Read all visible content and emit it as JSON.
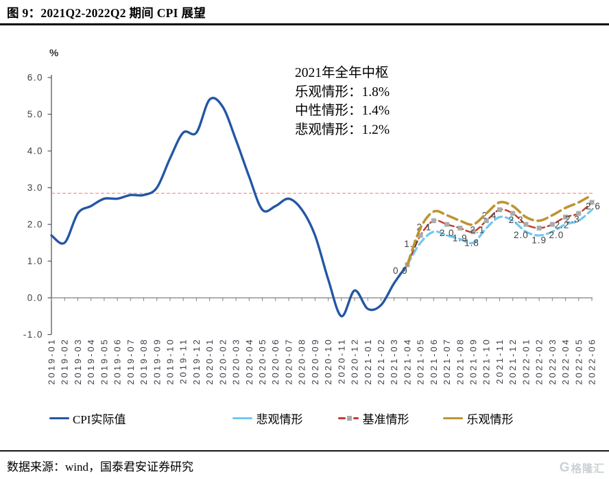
{
  "page": {
    "title": "图 9：2021Q2-2022Q2 期间 CPI 展望",
    "source": "数据来源：wind，国泰君安证券研究",
    "watermark": "格隆汇"
  },
  "annotation": {
    "title": "2021年全年中枢",
    "lines": [
      "乐观情形：1.8%",
      "中性情形：1.4%",
      "悲观情形：1.2%"
    ]
  },
  "chart_data": {
    "type": "line",
    "title": "2021Q2-2022Q2 期间 CPI 展望",
    "y_unit": "%",
    "ylim": [
      -1.0,
      6.0
    ],
    "y_ticks": [
      "6.0",
      "5.0",
      "4.0",
      "3.0",
      "2.0",
      "1.0",
      "0.0",
      "-1.0"
    ],
    "grid": false,
    "legend_position": "bottom",
    "reference_line": {
      "value": 2.85,
      "color": "#FF8585",
      "style": "dashed"
    },
    "x": [
      "2019-01",
      "2019-02",
      "2019-03",
      "2019-04",
      "2019-05",
      "2019-06",
      "2019-07",
      "2019-08",
      "2019-09",
      "2019-10",
      "2019-11",
      "2019-12",
      "2020-01",
      "2020-02",
      "2020-03",
      "2020-04",
      "2020-05",
      "2020-06",
      "2020-07",
      "2020-08",
      "2020-09",
      "2020-10",
      "2020-11",
      "2020-12",
      "2021-01",
      "2021-02",
      "2021-03",
      "2021-04",
      "2021-05",
      "2021-06",
      "2021-07",
      "2021-08",
      "2021-09",
      "2021-10",
      "2021-11",
      "2021-12",
      "2022-01",
      "2022-02",
      "2022-03",
      "2022-04",
      "2022-05",
      "2022-06"
    ],
    "series": [
      {
        "name": "CPI实际值",
        "color": "#2456A4",
        "style": "solid",
        "start_index": 0,
        "values": [
          1.7,
          1.5,
          2.3,
          2.5,
          2.7,
          2.7,
          2.8,
          2.8,
          3.0,
          3.8,
          4.5,
          4.5,
          5.4,
          5.2,
          4.3,
          3.3,
          2.4,
          2.5,
          2.7,
          2.4,
          1.7,
          0.5,
          -0.5,
          0.2,
          -0.3,
          -0.2,
          0.4,
          0.9
        ]
      },
      {
        "name": "悲观情形",
        "color": "#6FC7F2",
        "style": "dashed",
        "start_index": 27,
        "values": [
          0.9,
          1.5,
          1.8,
          1.7,
          1.6,
          1.5,
          1.9,
          2.2,
          2.1,
          1.8,
          1.7,
          1.8,
          2.0,
          2.1,
          2.4
        ]
      },
      {
        "name": "基准情形",
        "color": "#C23A2C",
        "style": "dashed",
        "marker": "square",
        "marker_color": "#ABABAB",
        "start_index": 27,
        "values": [
          0.9,
          1.7,
          2.1,
          2.0,
          1.9,
          1.8,
          2.1,
          2.4,
          2.3,
          2.0,
          1.9,
          2.0,
          2.2,
          2.3,
          2.6
        ],
        "point_labels": [
          "0.9",
          "1.7",
          "2.1",
          "2.0",
          "1.9",
          "1.8",
          "2.1",
          "2.4",
          "2.3",
          "2.0",
          "1.9",
          "2.0",
          "2.2",
          "2.3",
          "2.6"
        ]
      },
      {
        "name": "乐观情形",
        "color": "#BD9431",
        "style": "dashed",
        "start_index": 27,
        "values": [
          0.9,
          1.9,
          2.35,
          2.25,
          2.1,
          2.0,
          2.3,
          2.6,
          2.5,
          2.2,
          2.1,
          2.25,
          2.45,
          2.6,
          2.8
        ]
      }
    ]
  }
}
